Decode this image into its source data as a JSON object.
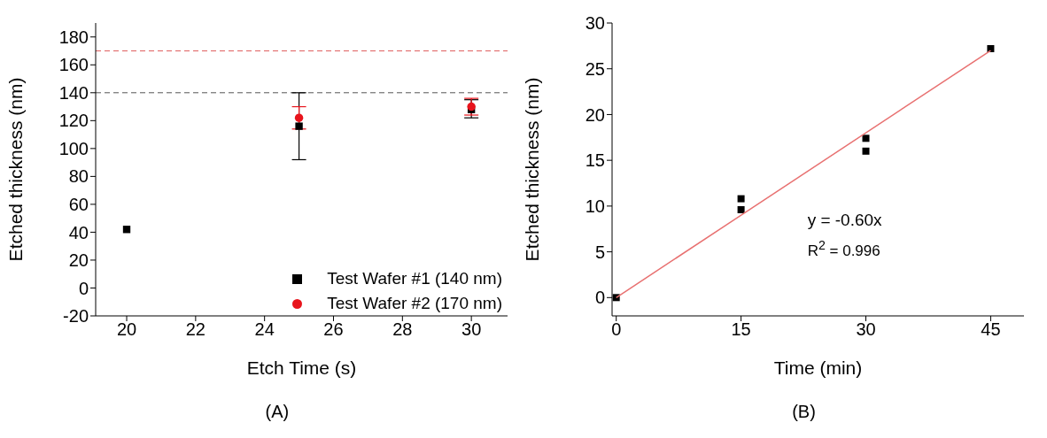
{
  "chart_data": [
    {
      "type": "scatter",
      "xlabel": "Etch Time (s)",
      "ylabel": "Etched thickness (nm)",
      "xlim": [
        19.1,
        31.05
      ],
      "xticks": [
        20,
        22,
        24,
        26,
        28,
        30
      ],
      "ylim": [
        -20,
        190
      ],
      "yticks": [
        -20,
        0,
        20,
        40,
        60,
        80,
        100,
        120,
        140,
        160,
        180
      ],
      "grid": false,
      "legend": "bottom right",
      "series": [
        {
          "name": "Test Wafer #1 (140 nm)",
          "color": "#000000",
          "marker": "square",
          "x": [
            20,
            25,
            30
          ],
          "values": [
            42,
            116,
            128
          ],
          "errors": [
            null,
            [
              92,
              140
            ],
            [
              122,
              135
            ]
          ]
        },
        {
          "name": "Test Wafer #2 (170 nm)",
          "color": "#e8141c",
          "marker": "circle",
          "x": [
            25,
            30
          ],
          "values": [
            122,
            130
          ],
          "errors": [
            8,
            6
          ]
        }
      ],
      "ref_lines": [
        {
          "axis": "y",
          "value": 170,
          "color": "#e06060",
          "line_style": "dashed"
        },
        {
          "axis": "y",
          "value": 140,
          "color": "#555555",
          "line_style": "dashed"
        }
      ],
      "annotations": [
        "(A)"
      ]
    },
    {
      "type": "scatter",
      "xlabel": "Time (min)",
      "ylabel": "Etched thickness (nm)",
      "xlim": [
        -0.5,
        49
      ],
      "xticks": [
        0,
        15,
        30,
        45
      ],
      "ylim": [
        -2,
        30
      ],
      "yticks": [
        0,
        5,
        10,
        15,
        20,
        25,
        30
      ],
      "grid": false,
      "legend": false,
      "series": [
        {
          "color": "#000000",
          "marker": "square",
          "x": [
            0,
            15,
            15,
            30,
            30,
            45
          ],
          "values": [
            0,
            10.8,
            9.6,
            17.4,
            16,
            27.2
          ]
        },
        {
          "type": "line",
          "color": "#e87070",
          "marker": "none",
          "x": [
            0,
            45
          ],
          "values": [
            0,
            27
          ]
        }
      ],
      "annotations": [
        "y = -0.60x",
        "R$^{2}$ = 0.996",
        "(B)"
      ]
    }
  ]
}
